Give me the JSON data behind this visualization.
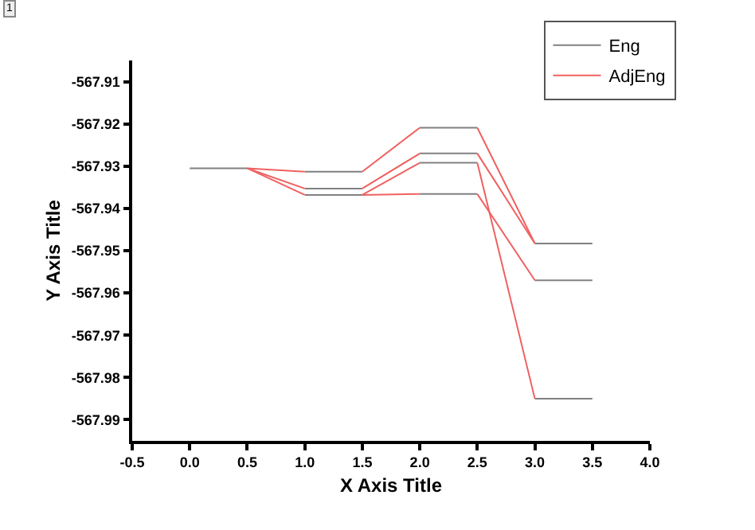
{
  "chart_data": {
    "type": "line",
    "xlabel": "X Axis Title",
    "ylabel": "Y Axis Title",
    "annotations": [
      "1"
    ],
    "xlim": [
      -0.5,
      4
    ],
    "ylim": [
      -567.995,
      -567.905
    ],
    "xticks": [
      -0.5,
      {
        "value": 0,
        "label": "0.0"
      },
      0.5,
      {
        "value": 1,
        "label": "1.0"
      },
      1.5,
      {
        "value": 2,
        "label": "2.0"
      },
      2.5,
      {
        "value": 3,
        "label": "3.0"
      },
      3.5,
      {
        "value": 4,
        "label": "4.0"
      }
    ],
    "yticks": [
      -567.91,
      -567.92,
      -567.93,
      -567.94,
      -567.95,
      -567.96,
      -567.97,
      -567.98,
      -567.99
    ],
    "legend": "top right",
    "marker": "none",
    "line_style": "solid",
    "series": [
      {
        "name": "Eng",
        "color": "#808080",
        "x": [
          0,
          0.5
        ],
        "values": [
          -567.9305,
          -567.9305
        ]
      },
      {
        "color": "#808080",
        "x": [
          1,
          1.5
        ],
        "values": [
          -567.9313,
          -567.9313
        ]
      },
      {
        "color": "#808080",
        "x": [
          1,
          1.5
        ],
        "values": [
          -567.9353,
          -567.9353
        ]
      },
      {
        "color": "#808080",
        "x": [
          1,
          1.5
        ],
        "values": [
          -567.9368,
          -567.9368
        ]
      },
      {
        "color": "#808080",
        "x": [
          2,
          2.5
        ],
        "values": [
          -567.9209,
          -567.9209
        ]
      },
      {
        "color": "#808080",
        "x": [
          2,
          2.5
        ],
        "values": [
          -567.927,
          -567.927
        ]
      },
      {
        "color": "#808080",
        "x": [
          2,
          2.5
        ],
        "values": [
          -567.9292,
          -567.9292
        ]
      },
      {
        "color": "#808080",
        "x": [
          2,
          2.5
        ],
        "values": [
          -567.9366,
          -567.9366
        ]
      },
      {
        "color": "#808080",
        "x": [
          3,
          3.5
        ],
        "values": [
          -567.9483,
          -567.9483
        ]
      },
      {
        "color": "#808080",
        "x": [
          3,
          3.5
        ],
        "values": [
          -567.957,
          -567.957
        ]
      },
      {
        "color": "#808080",
        "x": [
          3,
          3.5
        ],
        "values": [
          -567.985,
          -567.985
        ]
      },
      {
        "name": "AdjEng",
        "color": "#f06060",
        "x": [
          0.5,
          1
        ],
        "values": [
          -567.9305,
          -567.9313
        ]
      },
      {
        "color": "#f06060",
        "x": [
          0.5,
          1
        ],
        "values": [
          -567.9305,
          -567.9353
        ]
      },
      {
        "color": "#f06060",
        "x": [
          0.5,
          1
        ],
        "values": [
          -567.9305,
          -567.9368
        ]
      },
      {
        "color": "#f06060",
        "x": [
          1.5,
          2
        ],
        "values": [
          -567.9313,
          -567.9209
        ]
      },
      {
        "color": "#f06060",
        "x": [
          1.5,
          2
        ],
        "values": [
          -567.9353,
          -567.927
        ]
      },
      {
        "color": "#f06060",
        "x": [
          1.5,
          2
        ],
        "values": [
          -567.9368,
          -567.9292
        ]
      },
      {
        "color": "#f06060",
        "x": [
          1.5,
          2
        ],
        "values": [
          -567.9368,
          -567.9366
        ]
      },
      {
        "color": "#f06060",
        "x": [
          2.5,
          3
        ],
        "values": [
          -567.9209,
          -567.9483
        ]
      },
      {
        "color": "#f06060",
        "x": [
          2.5,
          3
        ],
        "values": [
          -567.927,
          -567.9483
        ]
      },
      {
        "color": "#f06060",
        "x": [
          2.5,
          3
        ],
        "values": [
          -567.9292,
          -567.985
        ]
      },
      {
        "color": "#f06060",
        "x": [
          2.5,
          3
        ],
        "values": [
          -567.9366,
          -567.957
        ]
      }
    ]
  }
}
